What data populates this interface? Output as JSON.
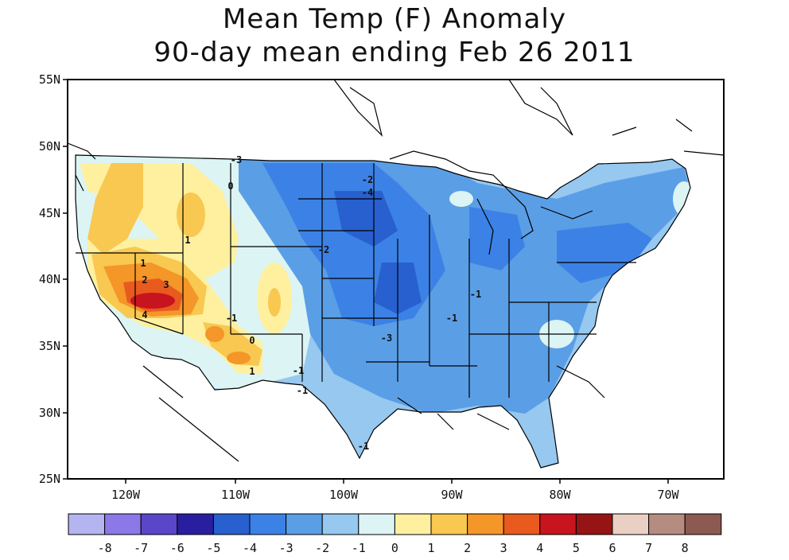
{
  "title": {
    "line1": "Mean Temp (F) Anomaly",
    "line2": "90-day mean ending Feb 26 2011"
  },
  "map": {
    "lat_labels": [
      "55N",
      "50N",
      "45N",
      "40N",
      "35N",
      "30N",
      "25N"
    ],
    "lon_labels": [
      "120W",
      "110W",
      "100W",
      "90W",
      "80W",
      "70W"
    ],
    "contour_labels": [
      "-3",
      "-2",
      "-4",
      "-2",
      "-1",
      "1",
      "0",
      "1",
      "2",
      "3",
      "4",
      "-1",
      "0",
      "1",
      "-1",
      "-3",
      "-1",
      "-1",
      "-1"
    ]
  },
  "legend": {
    "labels": [
      "-8",
      "-7",
      "-6",
      "-5",
      "-4",
      "-3",
      "-2",
      "-1",
      "0",
      "1",
      "2",
      "3",
      "4",
      "5",
      "6",
      "7",
      "8"
    ],
    "colors": [
      "#b4b4f0",
      "#8c78e6",
      "#5a46c8",
      "#2a1ea0",
      "#2860d0",
      "#3c82e6",
      "#5a9ee6",
      "#96c8f0",
      "#dcf4f4",
      "#fff0a0",
      "#f8c850",
      "#f49628",
      "#e85a1e",
      "#c8141e",
      "#961414",
      "#ead0c4",
      "#b48c80",
      "#8c5a50"
    ]
  }
}
